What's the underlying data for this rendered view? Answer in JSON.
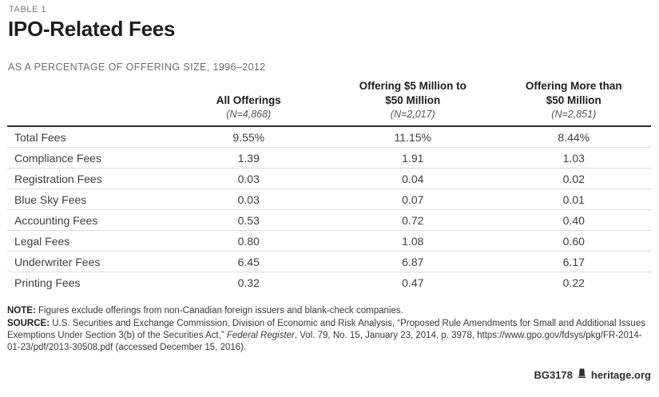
{
  "page": {
    "table_label": "TABLE 1",
    "title": "IPO-Related Fees",
    "subtitle": "AS A PERCENTAGE OF OFFERING SIZE, 1996–2012"
  },
  "chart_data": {
    "type": "table",
    "title": "IPO-Related Fees",
    "subtitle": "AS A PERCENTAGE OF OFFERING SIZE, 1996–2012",
    "columns": [
      {
        "title": "",
        "n": ""
      },
      {
        "title": "All Offerings",
        "n": "(N=4,868)"
      },
      {
        "title": "Offering $5 Million to\n$50 Million",
        "n": "(N=2,017)"
      },
      {
        "title": "Offering More than\n$50 Million",
        "n": "(N=2,851)"
      }
    ],
    "rows": [
      {
        "label": "Total Fees",
        "values": [
          "9.55%",
          "11.15%",
          "8.44%"
        ]
      },
      {
        "label": "Compliance Fees",
        "values": [
          "1.39",
          "1.91",
          "1.03"
        ]
      },
      {
        "label": "Registration Fees",
        "values": [
          "0.03",
          "0.04",
          "0.02"
        ]
      },
      {
        "label": "Blue Sky Fees",
        "values": [
          "0.03",
          "0.07",
          "0.01"
        ]
      },
      {
        "label": "Accounting Fees",
        "values": [
          "0.53",
          "0.72",
          "0.40"
        ]
      },
      {
        "label": "Legal Fees",
        "values": [
          "0.80",
          "1.08",
          "0.60"
        ]
      },
      {
        "label": "Underwriter Fees",
        "values": [
          "6.45",
          "6.87",
          "6.17"
        ]
      },
      {
        "label": "Printing Fees",
        "values": [
          "0.32",
          "0.47",
          "0.22"
        ]
      }
    ]
  },
  "footnotes": {
    "note_label": "NOTE:",
    "note_text": " Figures exclude offerings from non-Canadian foreign issuers and blank-check companies.",
    "source_label": "SOURCE:",
    "source_before_italic": " U.S. Securities and Exchange Commission, Division of Economic and Risk Analysis, “Proposed Rule Amendments for Small and Additional Issues Exemptions Under Section 3(b) of the Securities Act,” ",
    "source_italic": "Federal Register",
    "source_after_italic": ", Vol. 79, No. 15, January 23, 2014, p. 3978, https://www.gpo.gov/fdsys/pkg/FR-2014-01-23/pdf/2013-30508.pdf (accessed December 15, 2016)."
  },
  "footer": {
    "report_id": "BG3178",
    "site": "heritage.org",
    "icon": "liberty-bell-icon"
  },
  "colors": {
    "background": "#ffffff",
    "title_text": "#1e1e1e",
    "muted_gray": "#6f6f6f",
    "body_text": "#3f3f3f",
    "rule_dark": "#2b2b2b",
    "rule_light": "#dcdcdc"
  }
}
